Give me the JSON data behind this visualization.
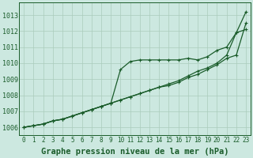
{
  "background_color": "#cce8e0",
  "grid_color": "#aaccbb",
  "line_color": "#1a5c2a",
  "marker_color": "#1a5c2a",
  "xlabel": "Graphe pression niveau de la mer (hPa)",
  "xlabel_fontsize": 7.5,
  "xtick_fontsize": 5.5,
  "ytick_fontsize": 6.0,
  "xlim": [
    -0.5,
    23.5
  ],
  "ylim": [
    1005.5,
    1013.8
  ],
  "yticks": [
    1006,
    1007,
    1008,
    1009,
    1010,
    1011,
    1012,
    1013
  ],
  "xticks": [
    0,
    1,
    2,
    3,
    4,
    5,
    6,
    7,
    8,
    9,
    10,
    11,
    12,
    13,
    14,
    15,
    16,
    17,
    18,
    19,
    20,
    21,
    22,
    23
  ],
  "series1_x": [
    0,
    1,
    2,
    3,
    4,
    5,
    6,
    7,
    8,
    9,
    10,
    11,
    12,
    13,
    14,
    15,
    16,
    17,
    18,
    19,
    20,
    21,
    22,
    23
  ],
  "series1_y": [
    1006.0,
    1006.1,
    1006.2,
    1006.4,
    1006.5,
    1006.7,
    1006.9,
    1007.1,
    1007.3,
    1007.5,
    1009.6,
    1010.1,
    1010.2,
    1010.2,
    1010.2,
    1010.2,
    1010.2,
    1010.3,
    1010.2,
    1010.4,
    1010.8,
    1011.0,
    1011.9,
    1012.1
  ],
  "series2_x": [
    0,
    1,
    2,
    3,
    4,
    5,
    6,
    7,
    8,
    9,
    10,
    11,
    12,
    13,
    14,
    15,
    16,
    17,
    18,
    19,
    20,
    21,
    22,
    23
  ],
  "series2_y": [
    1006.0,
    1006.1,
    1006.2,
    1006.4,
    1006.5,
    1006.7,
    1006.9,
    1007.1,
    1007.3,
    1007.5,
    1007.7,
    1007.9,
    1008.1,
    1008.3,
    1008.5,
    1008.6,
    1008.8,
    1009.1,
    1009.3,
    1009.6,
    1009.9,
    1010.3,
    1010.5,
    1012.5
  ],
  "series3_x": [
    0,
    1,
    2,
    3,
    4,
    5,
    6,
    7,
    8,
    9,
    10,
    11,
    12,
    13,
    14,
    15,
    16,
    17,
    18,
    19,
    20,
    21,
    22,
    23
  ],
  "series3_y": [
    1006.0,
    1006.1,
    1006.2,
    1006.4,
    1006.5,
    1006.7,
    1006.9,
    1007.1,
    1007.3,
    1007.5,
    1007.7,
    1007.9,
    1008.1,
    1008.3,
    1008.5,
    1008.7,
    1008.9,
    1009.2,
    1009.5,
    1009.7,
    1010.0,
    1010.5,
    1011.9,
    1013.2
  ]
}
